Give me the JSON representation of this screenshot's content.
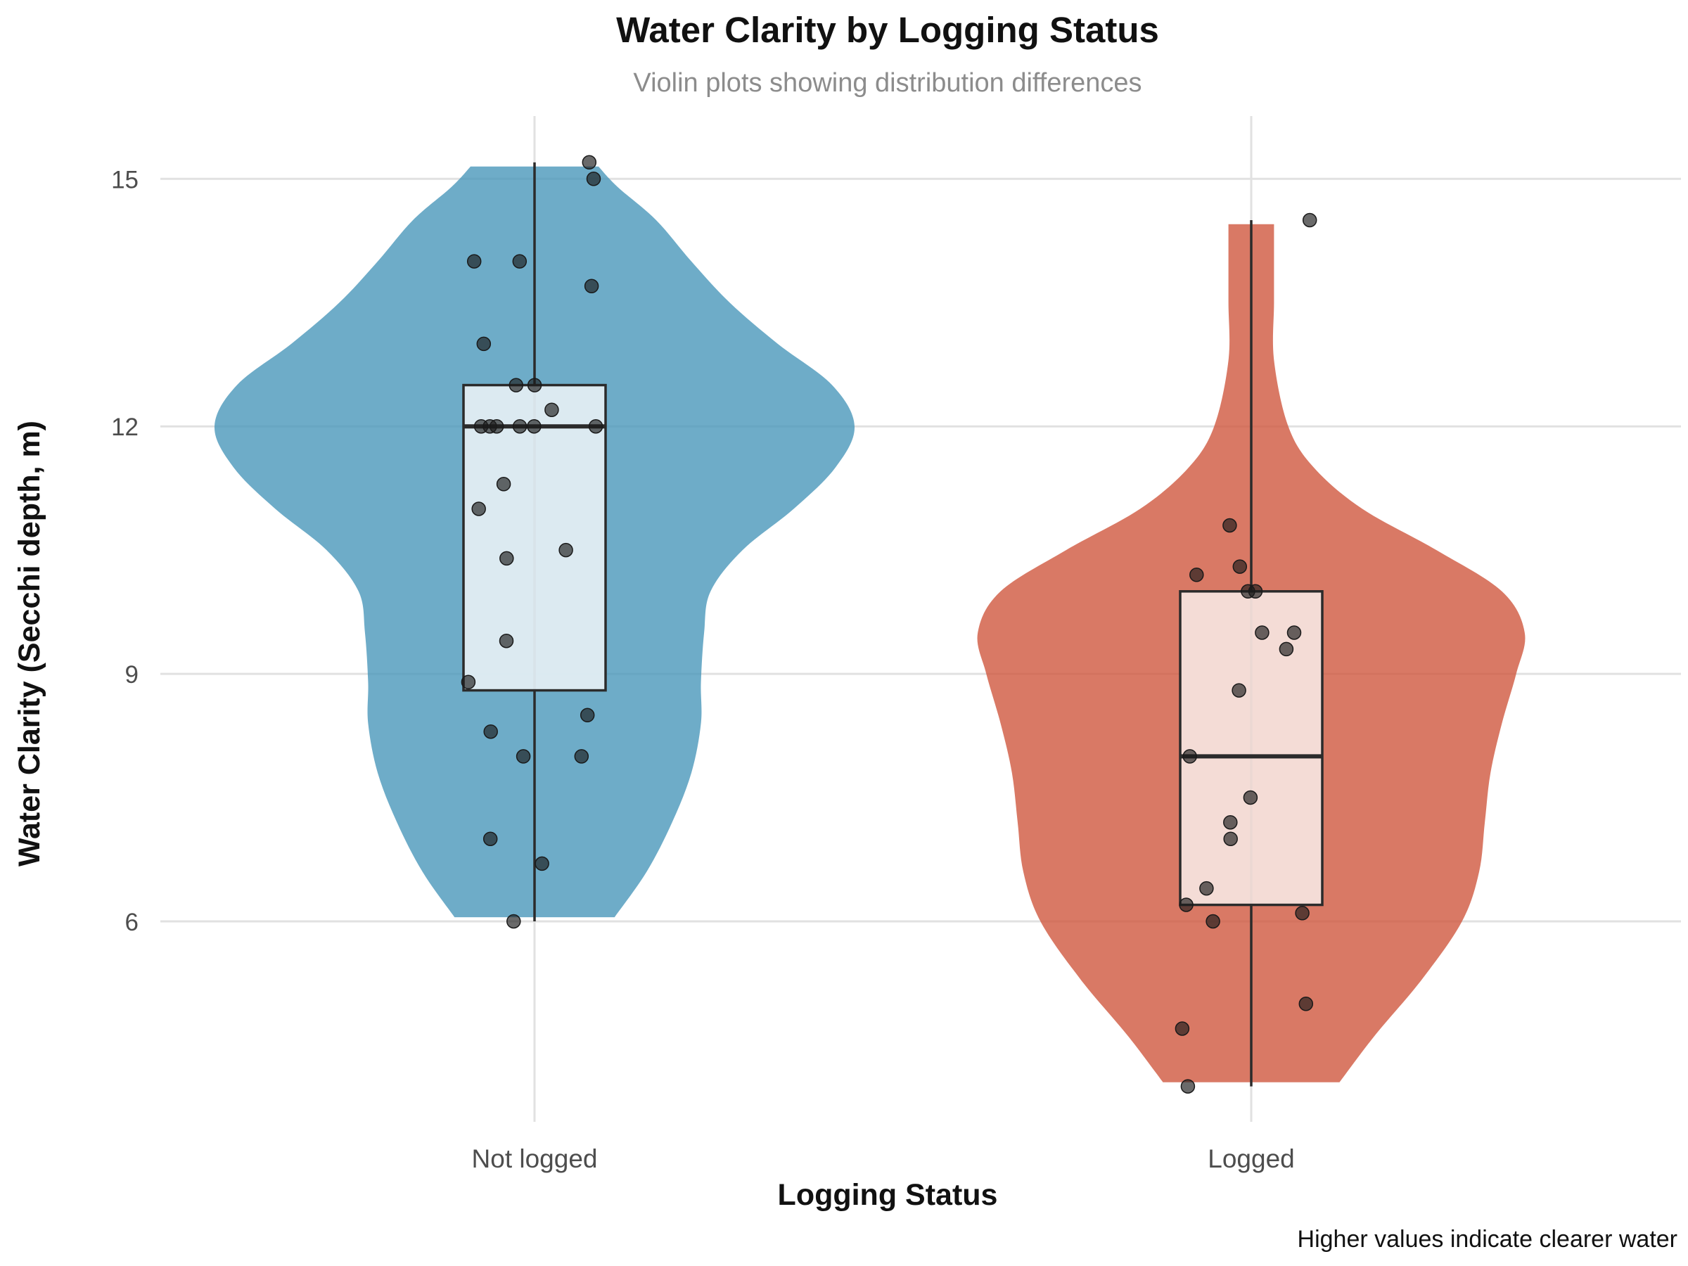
{
  "chart_data": {
    "type": "violin",
    "title": "Water Clarity by Logging Status",
    "subtitle": "Violin plots showing distribution differences",
    "xlabel": "Logging Status",
    "ylabel": "Water Clarity (Secchi depth, m)",
    "caption": "Higher values indicate clearer water",
    "ylim": [
      3.9,
      16.1
    ],
    "yticks": [
      6,
      9,
      12,
      15
    ],
    "grid": true,
    "categories": [
      "Not logged",
      "Logged"
    ],
    "series": [
      {
        "category": "Not logged",
        "color": "#4A97BA",
        "box_fill": "#E2EDF3",
        "box": {
          "q1": 8.8,
          "median": 12.0,
          "q3": 12.5,
          "min": 6.0,
          "max": 15.2
        },
        "density_profile": [
          [
            6.05,
            0.25
          ],
          [
            6.6,
            0.35
          ],
          [
            7.2,
            0.43
          ],
          [
            7.8,
            0.49
          ],
          [
            8.4,
            0.52
          ],
          [
            8.9,
            0.52
          ],
          [
            9.5,
            0.53
          ],
          [
            10.0,
            0.55
          ],
          [
            10.5,
            0.65
          ],
          [
            11.0,
            0.81
          ],
          [
            11.5,
            0.94
          ],
          [
            12.0,
            1.0
          ],
          [
            12.5,
            0.93
          ],
          [
            13.0,
            0.76
          ],
          [
            13.5,
            0.61
          ],
          [
            14.0,
            0.49
          ],
          [
            14.5,
            0.38
          ],
          [
            14.9,
            0.26
          ],
          [
            15.15,
            0.2
          ]
        ],
        "points": [
          15.2,
          15.0,
          14.0,
          14.0,
          13.7,
          13.0,
          12.5,
          12.5,
          12.2,
          12.0,
          12.0,
          12.0,
          12.0,
          12.0,
          12.0,
          11.3,
          11.0,
          10.5,
          10.4,
          9.4,
          8.9,
          8.5,
          8.3,
          8.0,
          8.0,
          7.0,
          6.7,
          6.0
        ]
      },
      {
        "category": "Logged",
        "color": "#D0583E",
        "box_fill": "#F6E2DC",
        "box": {
          "q1": 6.2,
          "median": 8.0,
          "q3": 10.0,
          "min": 4.0,
          "max": 14.5
        },
        "density_profile": [
          [
            4.05,
            0.31
          ],
          [
            4.6,
            0.43
          ],
          [
            5.3,
            0.6
          ],
          [
            6.0,
            0.74
          ],
          [
            6.6,
            0.8
          ],
          [
            7.2,
            0.82
          ],
          [
            7.8,
            0.84
          ],
          [
            8.4,
            0.88
          ],
          [
            9.0,
            0.93
          ],
          [
            9.5,
            0.96
          ],
          [
            10.0,
            0.88
          ],
          [
            10.5,
            0.65
          ],
          [
            11.0,
            0.39
          ],
          [
            11.5,
            0.22
          ],
          [
            12.0,
            0.13
          ],
          [
            12.8,
            0.08
          ],
          [
            13.5,
            0.08
          ],
          [
            14.1,
            0.08
          ],
          [
            14.45,
            0.08
          ]
        ],
        "points": [
          14.5,
          10.8,
          10.3,
          10.2,
          10.0,
          10.0,
          9.5,
          9.5,
          9.3,
          8.8,
          8.0,
          7.5,
          7.2,
          7.0,
          6.4,
          6.2,
          6.1,
          6.0,
          5.0,
          4.7,
          4.0
        ]
      }
    ]
  }
}
